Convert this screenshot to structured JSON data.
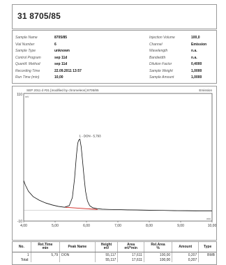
{
  "header": {
    "title": "31  8705/85"
  },
  "meta_left": [
    {
      "label": "Sample Name",
      "value": "8705/85"
    },
    {
      "label": "Vial Number",
      "value": "6"
    },
    {
      "label": "Sample Type",
      "value": "unknown"
    },
    {
      "label": "Control Program",
      "value": "sep 11d"
    },
    {
      "label": "Quantif. Method",
      "value": "sep 11d"
    },
    {
      "label": "Recording Time",
      "value": "22.09.2011 13:57"
    },
    {
      "label": "Run Time (min)",
      "value": "10,00"
    }
  ],
  "meta_right": [
    {
      "label": "Injection Volume",
      "value": "100,0"
    },
    {
      "label": "Channel",
      "value": "Emission"
    },
    {
      "label": "Wavelength",
      "value": "n.a."
    },
    {
      "label": "Bandwidth",
      "value": "n.a."
    },
    {
      "label": "Dilution Factor",
      "value": "0,4000"
    },
    {
      "label": "Sample Weight",
      "value": "1,0000"
    },
    {
      "label": "Sample Amount",
      "value": "1,0000"
    }
  ],
  "chart_data": {
    "type": "line",
    "title": "SEP 2011 d #31 [modified by chromeleon]  8705/85",
    "channel_label": "Emission",
    "y_unit": "mV",
    "x_unit": "min",
    "xlim": [
      4.0,
      10.0
    ],
    "ylim": [
      -10,
      110
    ],
    "x_ticks": [
      "4,00",
      "5,00",
      "6,00",
      "7,00",
      "8,00",
      "9,00",
      "10,00"
    ],
    "y_ticks": [
      "110",
      "-10"
    ],
    "series": [
      {
        "x": [
          4.0,
          4.05,
          4.15,
          4.3,
          4.5,
          4.7,
          4.9,
          5.1,
          5.3,
          5.45,
          5.55,
          5.62,
          5.68,
          5.72,
          5.75,
          5.79,
          5.83,
          5.87,
          5.92,
          5.97,
          6.03,
          6.1,
          6.2,
          6.35,
          6.5,
          6.7,
          7.0,
          7.3,
          7.6,
          8.0,
          8.4,
          8.8,
          9.2,
          9.6,
          10.0
        ],
        "y": [
          28,
          24,
          18,
          13,
          9.5,
          7,
          5.2,
          3.8,
          3.0,
          4.5,
          12,
          30,
          52,
          63,
          66,
          67,
          60,
          48,
          32,
          18,
          9,
          4.5,
          2.5,
          1.6,
          1.2,
          1.0,
          0.8,
          0.6,
          0.5,
          0.2,
          0.1,
          -0.2,
          -0.3,
          -0.5,
          -0.6
        ]
      }
    ],
    "baseline": {
      "x": [
        5.32,
        6.35
      ],
      "y": [
        3.0,
        0.9
      ]
    },
    "annotations": [
      {
        "text": "1 - DON - 5,793",
        "x": 5.79,
        "y": 67
      }
    ]
  },
  "results": {
    "headers": [
      "No.",
      "Ret.Time\nmin",
      "Peak Name",
      "Height\nmV",
      "Area\nmV*min",
      "Rel.Area\n%",
      "Amount",
      "Type"
    ],
    "rows": [
      [
        "1",
        "5,79",
        "DON",
        "55,117",
        "17,611",
        "100,00",
        "0,207",
        "BMB"
      ],
      [
        "Total:",
        "",
        "",
        "55,117",
        "17,611",
        "100,00",
        "0,207",
        ""
      ]
    ]
  }
}
